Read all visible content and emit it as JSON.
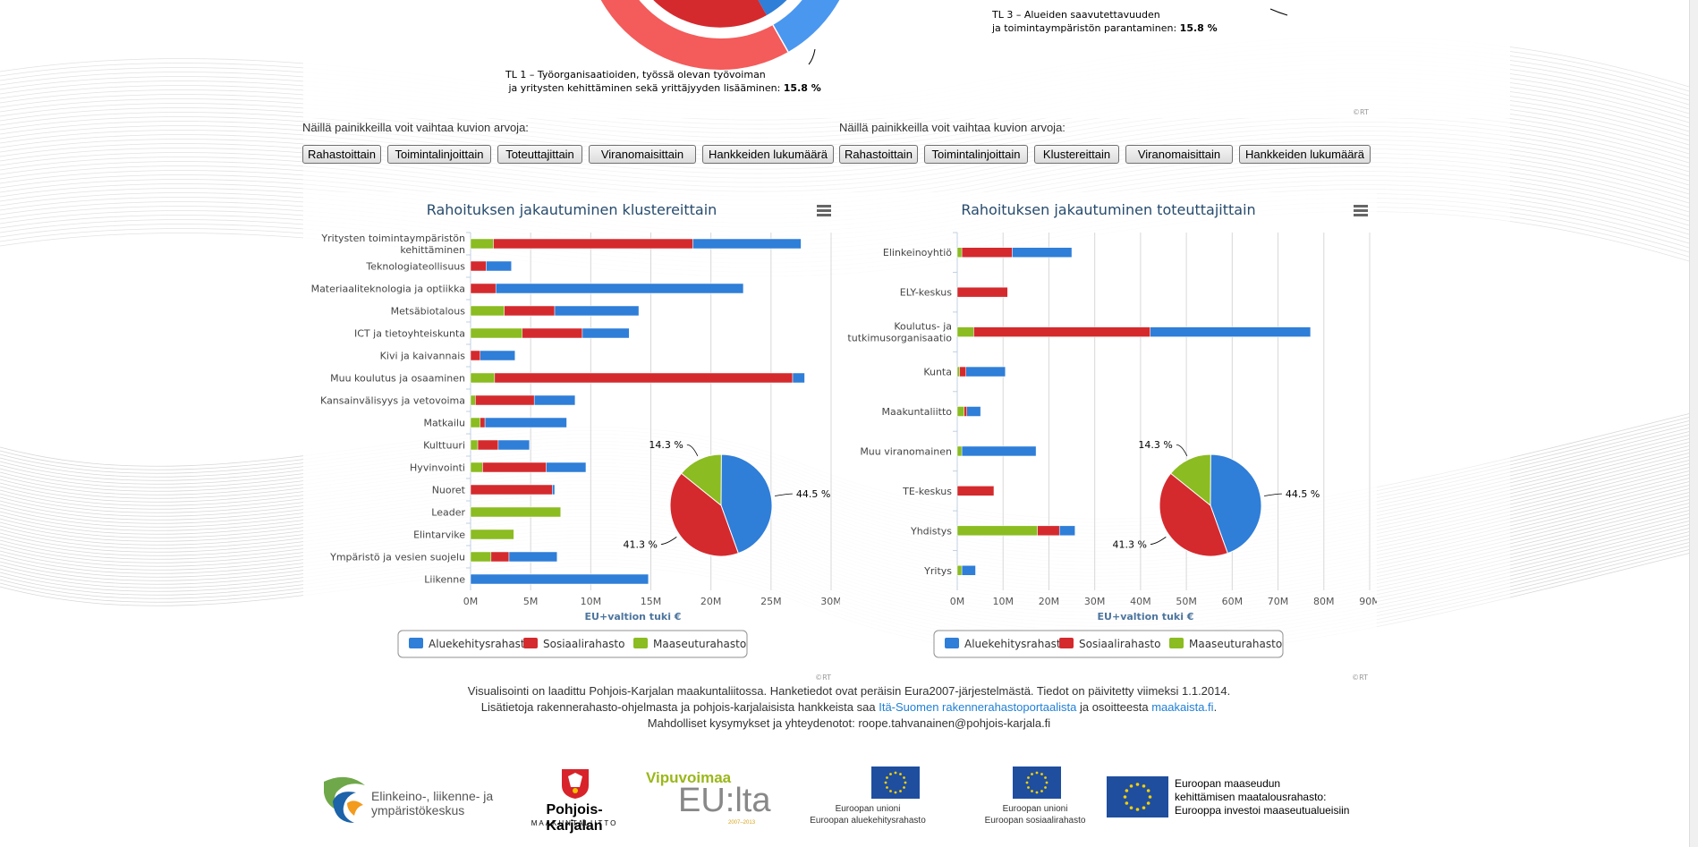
{
  "top_donut": {
    "label_tl3_line1": "TL 3 – Alueiden saavutettavuuden",
    "label_tl3_line2": "ja toimintaympäristön parantaminen:",
    "label_tl3_value": "15.8 %",
    "label_tl1_line1": "TL 1 – Työorganisaatioiden, työssä olevan työvoiman",
    "label_tl1_line2": "ja yritysten kehittäminen sekä yrittäjyyden lisääminen:",
    "label_tl1_value": "15.8 %",
    "credits": "©RT"
  },
  "left_buttons": {
    "prompt": "Näillä painikkeilla voit vaihtaa kuvion arvoja:",
    "items": [
      "Rahastoittain",
      "Toimintalinjoittain",
      "Toteuttajittain",
      "Viranomaisittain",
      "Hankkeiden lukumäärä"
    ]
  },
  "right_buttons": {
    "prompt": "Näillä painikkeilla voit vaihtaa kuvion arvoja:",
    "items": [
      "Rahastoittain",
      "Toimintalinjoittain",
      "Klustereittain",
      "Viranomaisittain",
      "Hankkeiden lukumäärä"
    ]
  },
  "colors": {
    "aluekehitys": "#2f7ed8",
    "sosiaali": "#d42a2e",
    "maaseutu": "#8bbc21",
    "title": "#274b6d",
    "axis_title": "#4d759e"
  },
  "chart_data": [
    {
      "type": "bar",
      "stacked": true,
      "orientation": "horizontal",
      "title": "Rahoituksen jakautuminen klustereittain",
      "categories": [
        "Yritysten toimintaympäristön kehittäminen",
        "Teknologiateollisuus",
        "Materiaaliteknologia ja optiikka",
        "Metsäbiotalous",
        "ICT ja tietoyhteiskunta",
        "Kivi ja kaivannais",
        "Muu koulutus ja osaaminen",
        "Kansainvälisyys ja vetovoima",
        "Matkailu",
        "Kulttuuri",
        "Hyvinvointi",
        "Nuoret",
        "Leader",
        "Elintarvike",
        "Ympäristö ja vesien suojelu",
        "Liikenne"
      ],
      "series": [
        {
          "name": "Maaseuturahasto",
          "values": [
            1.9,
            0,
            0,
            2.8,
            4.3,
            0,
            2.0,
            0.4,
            0.8,
            0.6,
            1.0,
            0,
            7.5,
            3.6,
            1.7,
            0
          ]
        },
        {
          "name": "Sosiaalirahasto",
          "values": [
            16.6,
            1.3,
            2.1,
            4.2,
            5.0,
            0.8,
            24.8,
            4.9,
            0.4,
            1.7,
            5.3,
            6.8,
            0,
            0,
            1.5,
            0
          ]
        },
        {
          "name": "Aluekehitysrahasto",
          "values": [
            9.0,
            2.1,
            20.6,
            7.0,
            3.9,
            2.9,
            1.0,
            3.4,
            6.8,
            2.6,
            3.3,
            0.2,
            0,
            0,
            4.0,
            14.8
          ]
        }
      ],
      "xlabel": "EU+valtion tuki €",
      "xlim": [
        0,
        30000000
      ],
      "x_ticks": [
        "0M",
        "5M",
        "10M",
        "15M",
        "20M",
        "25M",
        "30M"
      ],
      "pie": {
        "slices": [
          {
            "name": "Aluekehitysrahasto",
            "value": 44.5,
            "label": "44.5 %"
          },
          {
            "name": "Sosiaalirahasto",
            "value": 41.3,
            "label": "41.3 %"
          },
          {
            "name": "Maaseuturahasto",
            "value": 14.3,
            "label": "14.3 %"
          }
        ]
      },
      "legend": [
        "Aluekehitysrahasto",
        "Sosiaalirahasto",
        "Maaseuturahasto"
      ],
      "legend_position": "bottom",
      "credits": "©RT"
    },
    {
      "type": "bar",
      "stacked": true,
      "orientation": "horizontal",
      "title": "Rahoituksen jakautuminen toteuttajittain",
      "categories": [
        "Elinkeinoyhtiö",
        "ELY-keskus",
        "Koulutus- ja tutkimusorganisaatio",
        "Kunta",
        "Maakuntaliitto",
        "Muu viranomainen",
        "TE-keskus",
        "Yhdistys",
        "Yritys"
      ],
      "series": [
        {
          "name": "Maaseuturahasto",
          "values": [
            1.0,
            0,
            3.6,
            0.5,
            1.5,
            1.0,
            0,
            17.5,
            1.0
          ]
        },
        {
          "name": "Sosiaalirahasto",
          "values": [
            11.0,
            11.0,
            38.5,
            1.4,
            0.6,
            0,
            8.0,
            4.8,
            0
          ]
        },
        {
          "name": "Aluekehitysrahasto",
          "values": [
            13.0,
            0,
            35.0,
            8.6,
            3.0,
            16.2,
            0,
            3.4,
            3.0
          ]
        }
      ],
      "xlabel": "EU+valtion tuki €",
      "xlim": [
        0,
        90000000
      ],
      "x_ticks": [
        "0M",
        "10M",
        "20M",
        "30M",
        "40M",
        "50M",
        "60M",
        "70M",
        "80M",
        "90M"
      ],
      "pie": {
        "slices": [
          {
            "name": "Aluekehitysrahasto",
            "value": 44.5,
            "label": "44.5 %"
          },
          {
            "name": "Sosiaalirahasto",
            "value": 41.3,
            "label": "41.3 %"
          },
          {
            "name": "Maaseuturahasto",
            "value": 14.3,
            "label": "14.3 %"
          }
        ]
      },
      "legend": [
        "Aluekehitysrahasto",
        "Sosiaalirahasto",
        "Maaseuturahasto"
      ],
      "legend_position": "bottom",
      "credits": "©RT"
    }
  ],
  "footer": {
    "line1": "Visualisointi on laadittu Pohjois-Karjalan maakuntaliitossa. Hanketiedot ovat peräisin Eura2007-järjestelmästä. Tiedot on päivitetty viimeksi 1.1.2014.",
    "line2_pre": "Lisätietoja rakennerahasto-ohjelmasta ja pohjois-karjalaisista hankkeista saa ",
    "line2_link1": "Itä-Suomen rakennerahastoportaalista",
    "line2_mid": " ja osoitteesta ",
    "line2_link2": "maakaista.fi",
    "line2_post": ".",
    "line3": "Mahdolliset kysymykset ja yhteydenotot: roope.tahvanainen@pohjois-karjala.fi"
  },
  "logos": {
    "ely_line1": "Elinkeino-, liikenne- ja",
    "ely_line2": "ympäristökeskus",
    "pk_line1": "Pohjois-Karjalan",
    "pk_line2": "MAAKUNTALIITTO",
    "vip_line1": "Vipuvoimaa",
    "vip_line2": "EU:lta",
    "vip_years": "2007–2013",
    "eu1_line1": "Euroopan unioni",
    "eu1_line2": "Euroopan aluekehitysrahasto",
    "eu2_line1": "Euroopan unioni",
    "eu2_line2": "Euroopan sosiaalirahasto",
    "eu3_line1": "Euroopan maaseudun",
    "eu3_line2": "kehittämisen maatalousrahasto:",
    "eu3_line3": "Eurooppa investoi maaseutualueisiin"
  }
}
